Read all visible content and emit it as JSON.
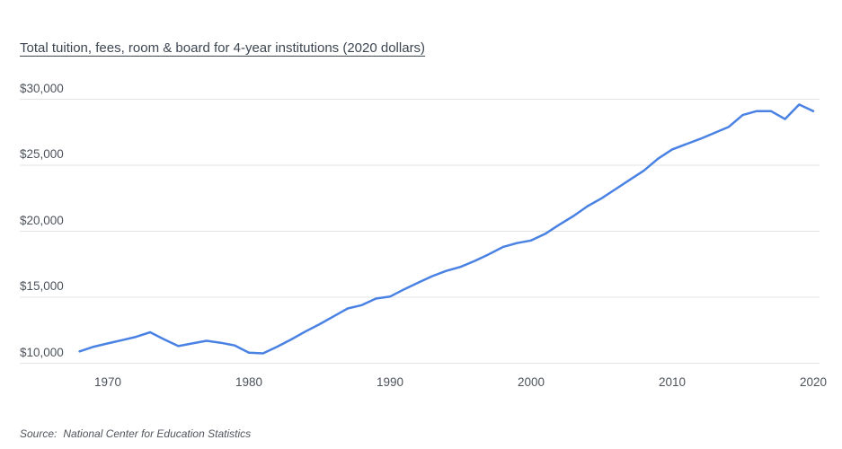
{
  "chart_data": {
    "type": "line",
    "title": "Total tuition, fees, room & board for 4-year institutions (2020 dollars)",
    "xlabel": "",
    "ylabel": "",
    "x": [
      1968,
      1969,
      1970,
      1971,
      1972,
      1973,
      1974,
      1975,
      1976,
      1977,
      1978,
      1979,
      1980,
      1981,
      1982,
      1983,
      1984,
      1985,
      1986,
      1987,
      1988,
      1989,
      1990,
      1991,
      1992,
      1993,
      1994,
      1995,
      1996,
      1997,
      1998,
      1999,
      2000,
      2001,
      2002,
      2003,
      2004,
      2005,
      2006,
      2007,
      2008,
      2009,
      2010,
      2011,
      2012,
      2013,
      2014,
      2015,
      2016,
      2017,
      2018,
      2019,
      2020
    ],
    "values": [
      10900,
      11250,
      11500,
      11750,
      12000,
      12350,
      11800,
      11300,
      11500,
      11700,
      11550,
      11350,
      10800,
      10750,
      11250,
      11800,
      12400,
      12950,
      13550,
      14150,
      14400,
      14900,
      15050,
      15600,
      16100,
      16600,
      17000,
      17300,
      17750,
      18250,
      18800,
      19100,
      19300,
      19800,
      20500,
      21150,
      21900,
      22500,
      23200,
      23900,
      24600,
      25500,
      26200,
      26600,
      27000,
      27450,
      27900,
      28800,
      29100,
      29100,
      28500,
      29600,
      29100
    ],
    "series_name": "Total tuition, fees, room & board for 4-year institutions (2020 dollars)",
    "x_ticks": [
      1970,
      1980,
      1990,
      2000,
      2010,
      2020
    ],
    "y_ticks": [
      10000,
      15000,
      20000,
      25000,
      30000
    ],
    "y_tick_prefix": "$",
    "xlim": [
      1968,
      2020
    ],
    "ylim": [
      10000,
      30000
    ],
    "grid": "horizontal-only",
    "legend": "none",
    "line_color": "#4a82e4",
    "gridline_color": "#e3e4e6"
  },
  "source": {
    "label": "Source:",
    "text": "National Center for Education Statistics"
  }
}
